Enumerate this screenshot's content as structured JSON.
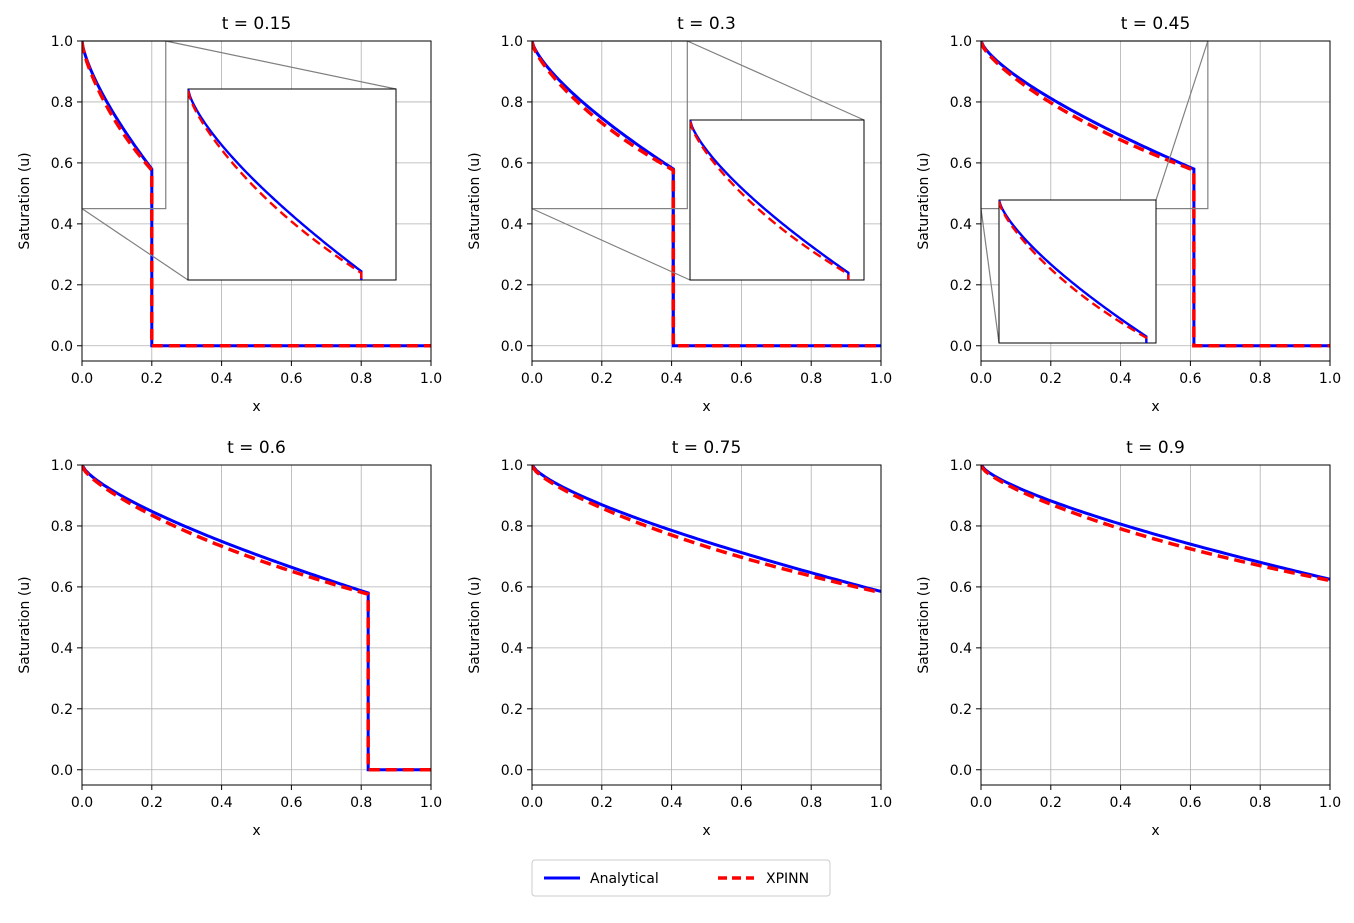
{
  "chart_data": [
    {
      "type": "line",
      "title": "t = 0.15",
      "t": 0.15,
      "shock_x": 0.2,
      "post_u": 0.58,
      "xlabel": "x",
      "ylabel": "Saturation (u)",
      "xlim": [
        0,
        1
      ],
      "ylim": [
        -0.05,
        1.0
      ],
      "inset": true
    },
    {
      "type": "line",
      "title": "t = 0.3",
      "t": 0.3,
      "shock_x": 0.405,
      "post_u": 0.58,
      "xlabel": "x",
      "ylabel": "Saturation (u)",
      "xlim": [
        0,
        1
      ],
      "ylim": [
        -0.05,
        1.0
      ],
      "inset": true
    },
    {
      "type": "line",
      "title": "t = 0.45",
      "t": 0.45,
      "shock_x": 0.61,
      "post_u": 0.58,
      "xlabel": "x",
      "ylabel": "Saturation (u)",
      "xlim": [
        0,
        1
      ],
      "ylim": [
        -0.05,
        1.0
      ],
      "inset": true
    },
    {
      "type": "line",
      "title": "t = 0.6",
      "t": 0.6,
      "shock_x": 0.82,
      "post_u": 0.58,
      "xlabel": "x",
      "ylabel": "Saturation (u)",
      "xlim": [
        0,
        1
      ],
      "ylim": [
        -0.05,
        1.0
      ],
      "inset": false
    },
    {
      "type": "line",
      "title": "t = 0.75",
      "t": 0.75,
      "shock_x": null,
      "end_u": 0.585,
      "xlabel": "x",
      "ylabel": "Saturation (u)",
      "xlim": [
        0,
        1
      ],
      "ylim": [
        -0.05,
        1.0
      ],
      "inset": false
    },
    {
      "type": "line",
      "title": "t = 0.9",
      "t": 0.9,
      "shock_x": null,
      "end_u": 0.625,
      "xlabel": "x",
      "ylabel": "Saturation (u)",
      "xlim": [
        0,
        1
      ],
      "ylim": [
        -0.05,
        1.0
      ],
      "inset": false
    }
  ],
  "xticks": [
    "0.0",
    "0.2",
    "0.4",
    "0.6",
    "0.8",
    "1.0"
  ],
  "yticks": [
    "0.0",
    "0.2",
    "0.4",
    "0.6",
    "0.8",
    "1.0"
  ],
  "series": [
    {
      "name": "Analytical",
      "color": "#0000ff",
      "style": "solid"
    },
    {
      "name": "XPINN",
      "color": "#ff0000",
      "style": "dashed"
    }
  ],
  "legend": {
    "position": "bottom-center",
    "labels": [
      "Analytical",
      "XPINN"
    ]
  }
}
